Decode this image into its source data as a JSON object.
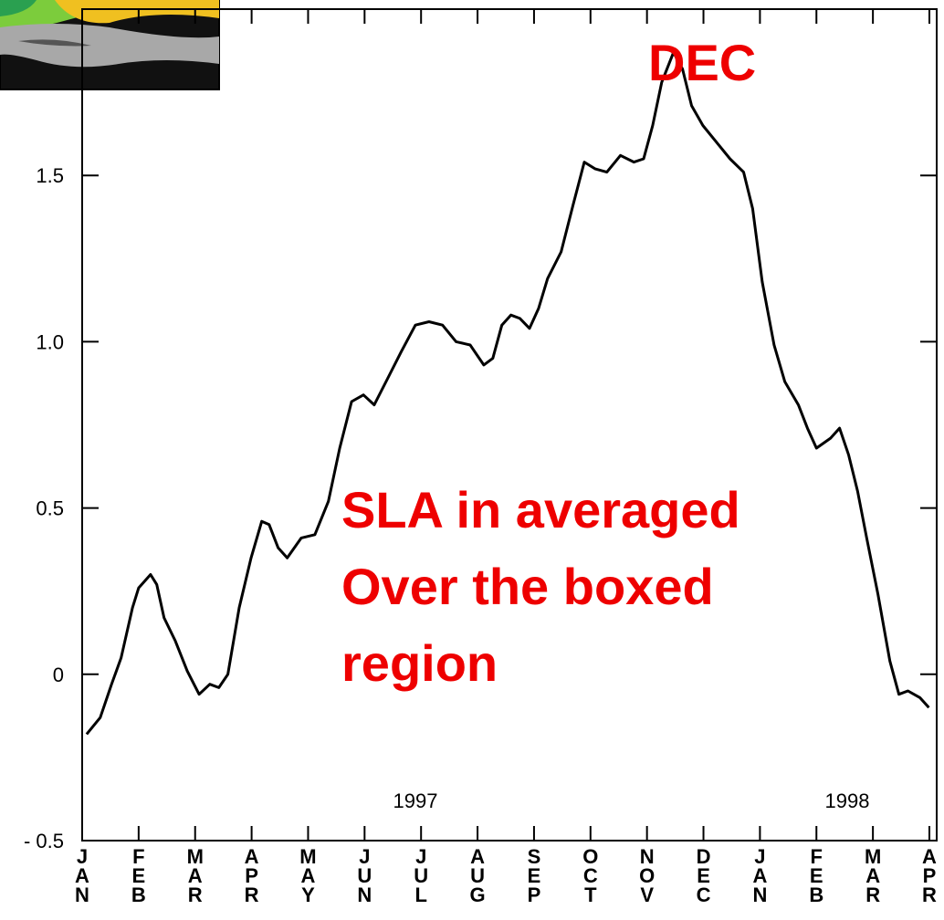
{
  "chart_data": {
    "type": "line",
    "x": [
      0.08,
      0.32,
      0.52,
      0.69,
      0.89,
      1.0,
      1.21,
      1.32,
      1.45,
      1.65,
      1.86,
      2.07,
      2.26,
      2.42,
      2.58,
      2.78,
      2.99,
      3.18,
      3.31,
      3.47,
      3.63,
      3.88,
      4.12,
      4.36,
      4.56,
      4.77,
      4.98,
      5.17,
      5.41,
      5.65,
      5.9,
      6.14,
      6.38,
      6.62,
      6.87,
      7.11,
      7.27,
      7.43,
      7.59,
      7.75,
      7.92,
      8.08,
      8.24,
      8.48,
      8.69,
      8.89,
      9.08,
      9.29,
      9.53,
      9.77,
      9.94,
      10.1,
      10.26,
      10.47,
      10.63,
      10.79,
      10.99,
      11.23,
      11.47,
      11.71,
      11.87,
      12.04,
      12.25,
      12.44,
      12.68,
      12.84,
      13.0,
      13.25,
      13.41,
      13.57,
      13.73,
      13.89,
      14.09,
      14.3,
      14.46,
      14.62,
      14.83,
      14.99
    ],
    "values": [
      -0.18,
      -0.13,
      -0.03,
      0.05,
      0.2,
      0.26,
      0.3,
      0.27,
      0.17,
      0.1,
      0.01,
      -0.06,
      -0.03,
      -0.04,
      0.0,
      0.2,
      0.35,
      0.46,
      0.45,
      0.38,
      0.35,
      0.41,
      0.42,
      0.52,
      0.68,
      0.82,
      0.84,
      0.81,
      0.89,
      0.97,
      1.05,
      1.06,
      1.05,
      1.0,
      0.99,
      0.93,
      0.95,
      1.05,
      1.08,
      1.07,
      1.04,
      1.1,
      1.19,
      1.27,
      1.41,
      1.54,
      1.52,
      1.51,
      1.56,
      1.54,
      1.55,
      1.65,
      1.78,
      1.87,
      1.82,
      1.71,
      1.65,
      1.6,
      1.55,
      1.51,
      1.4,
      1.18,
      0.99,
      0.88,
      0.81,
      0.74,
      0.68,
      0.71,
      0.74,
      0.66,
      0.55,
      0.41,
      0.24,
      0.04,
      -0.06,
      -0.05,
      -0.07,
      -0.1
    ],
    "color": "#000000",
    "xlim": [
      0,
      15
    ],
    "xticks": [
      {
        "value": 0,
        "label": "JAN"
      },
      {
        "value": 1,
        "label": "FEB"
      },
      {
        "value": 2,
        "label": "MAR"
      },
      {
        "value": 3,
        "label": "APR"
      },
      {
        "value": 4,
        "label": "MAY"
      },
      {
        "value": 5,
        "label": "JUN"
      },
      {
        "value": 6,
        "label": "JUL"
      },
      {
        "value": 7,
        "label": "AUG"
      },
      {
        "value": 8,
        "label": "SEP"
      },
      {
        "value": 9,
        "label": "OCT"
      },
      {
        "value": 10,
        "label": "NOV"
      },
      {
        "value": 11,
        "label": "DEC"
      },
      {
        "value": 12,
        "label": "JAN"
      },
      {
        "value": 13,
        "label": "FEB"
      },
      {
        "value": 14,
        "label": "MAR"
      },
      {
        "value": 15,
        "label": "APR"
      }
    ],
    "ylim": [
      -0.5,
      2.0
    ],
    "yticks": [
      {
        "value": -0.5,
        "label": "- 0.5"
      },
      0,
      0.5,
      {
        "value": 1,
        "label": "1.0"
      },
      1.5
    ],
    "grid": false,
    "year_labels": [
      "1997",
      "1998"
    ],
    "annotations": [
      "DEC",
      "SLA in averaged",
      "Over the boxed",
      "region"
    ]
  }
}
